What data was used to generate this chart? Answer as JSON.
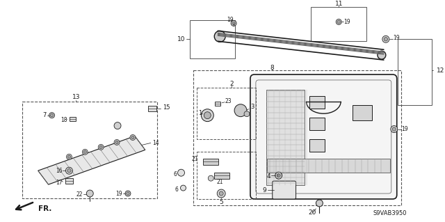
{
  "background_color": "#ffffff",
  "diagram_code": "S9VAB3950",
  "figsize": [
    6.4,
    3.19
  ],
  "dpi": 100,
  "lc": "#1a1a1a",
  "gray": "#888888",
  "dgray": "#444444"
}
